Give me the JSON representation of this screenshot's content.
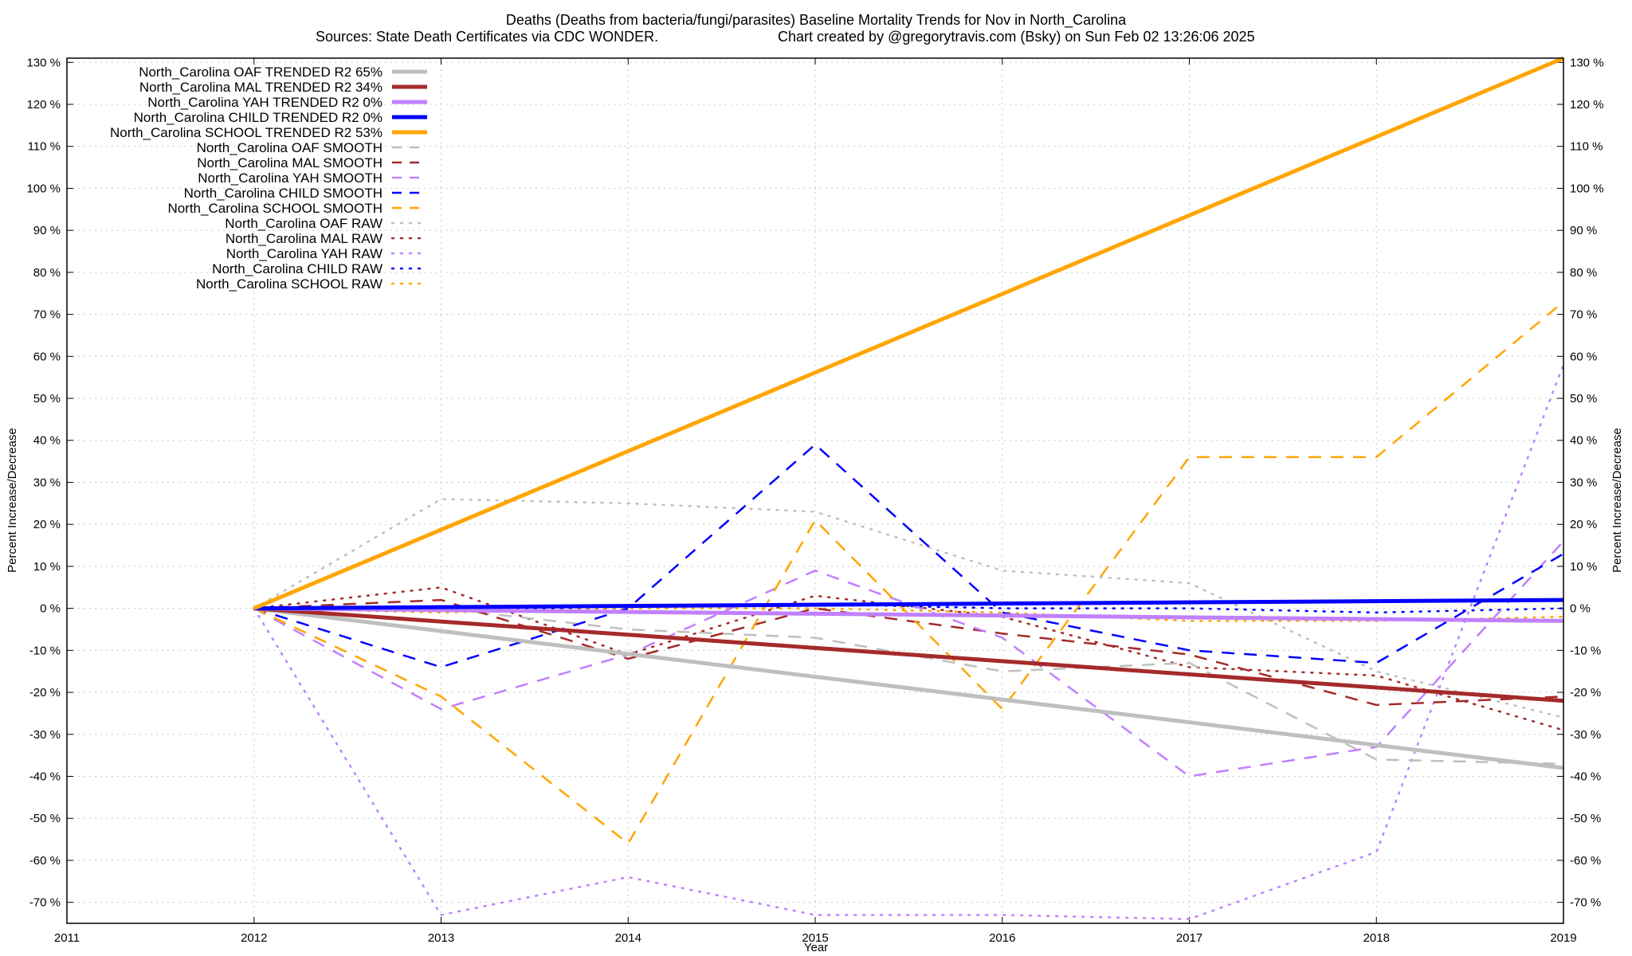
{
  "chart_data": {
    "type": "line",
    "title": "Deaths (Deaths from bacteria/fungi/parasites)  Baseline Mortality Trends for Nov in North_Carolina",
    "subtitle_left": "Sources: State Death Certificates via CDC WONDER.",
    "subtitle_right": "Chart created by @gregorytravis.com (Bsky) on Sun Feb 02 13:26:06 2025",
    "xlabel": "Year",
    "ylabel": "Percent Increase/Decrease",
    "xlim": [
      2011,
      2019
    ],
    "ylim": [
      -75,
      131
    ],
    "x_ticks": [
      "2011",
      "2012",
      "2013",
      "2014",
      "2015",
      "2016",
      "2017",
      "2018",
      "2019"
    ],
    "y_ticks": [
      130,
      120,
      110,
      100,
      90,
      80,
      70,
      60,
      50,
      40,
      30,
      20,
      10,
      0,
      -10,
      -20,
      -30,
      -40,
      -50,
      -60,
      -70
    ],
    "y_tick_suffix": " %",
    "grid": true,
    "legend_position": "top-left",
    "x": [
      2012,
      2013,
      2014,
      2015,
      2016,
      2017,
      2018,
      2019
    ],
    "series": [
      {
        "name": "North_Carolina OAF TRENDED R2  65%",
        "style": "solid",
        "width": 5,
        "color": "#bfbfbf",
        "x": [
          2012,
          2019
        ],
        "values": [
          0,
          -38
        ]
      },
      {
        "name": "North_Carolina MAL TRENDED R2  34%",
        "style": "solid",
        "width": 5,
        "color": "#a52a2a",
        "x": [
          2012,
          2019
        ],
        "values": [
          0,
          -22
        ]
      },
      {
        "name": "North_Carolina YAH TRENDED R2   0%",
        "style": "solid",
        "width": 5,
        "color": "#c080ff",
        "x": [
          2012,
          2019
        ],
        "values": [
          0,
          -3
        ]
      },
      {
        "name": "North_Carolina CHILD TRENDED R2   0%",
        "style": "solid",
        "width": 5,
        "color": "#0000ff",
        "x": [
          2012,
          2019
        ],
        "values": [
          0,
          2
        ]
      },
      {
        "name": "North_Carolina SCHOOL TRENDED R2  53%",
        "style": "solid",
        "width": 5,
        "color": "#ffa500",
        "x": [
          2012,
          2019
        ],
        "values": [
          0,
          131
        ]
      },
      {
        "name": "North_Carolina OAF SMOOTH",
        "style": "dashed",
        "width": 2.5,
        "color": "#bfbfbf",
        "values": [
          0,
          0,
          -5,
          -7,
          -15,
          -13,
          -36,
          -37
        ]
      },
      {
        "name": "North_Carolina MAL SMOOTH",
        "style": "dashed",
        "width": 2.5,
        "color": "#a52a2a",
        "values": [
          0,
          2,
          -12,
          0,
          -6,
          -11,
          -23,
          -21
        ]
      },
      {
        "name": "North_Carolina YAH SMOOTH",
        "style": "dashed",
        "width": 2.5,
        "color": "#c080ff",
        "values": [
          0,
          -24,
          -11,
          9,
          -7,
          -40,
          -33,
          16
        ]
      },
      {
        "name": "North_Carolina CHILD SMOOTH",
        "style": "dashed",
        "width": 2.5,
        "color": "#0000ff",
        "values": [
          0,
          -14,
          0,
          39,
          -1,
          -10,
          -13,
          13
        ]
      },
      {
        "name": "North_Carolina SCHOOL SMOOTH",
        "style": "dashed",
        "width": 2.5,
        "color": "#ffa500",
        "values": [
          0,
          -21,
          -56,
          21,
          -24,
          36,
          36,
          73
        ]
      },
      {
        "name": "North_Carolina OAF RAW",
        "style": "dotted",
        "width": 2.5,
        "color": "#bfbfbf",
        "values": [
          0,
          26,
          25,
          23,
          9,
          6,
          -15,
          -26
        ]
      },
      {
        "name": "North_Carolina MAL RAW",
        "style": "dotted",
        "width": 2.5,
        "color": "#a52a2a",
        "values": [
          0,
          5,
          -11,
          3,
          -2,
          -14,
          -16,
          -29
        ]
      },
      {
        "name": "North_Carolina YAH RAW",
        "style": "dotted",
        "width": 2.5,
        "color": "#c080ff",
        "values": [
          0,
          -73,
          -64,
          -73,
          -73,
          -74,
          -58,
          58
        ]
      },
      {
        "name": "North_Carolina CHILD RAW",
        "style": "dotted",
        "width": 2.5,
        "color": "#0000ff",
        "values": [
          0,
          0,
          0,
          1,
          0,
          0,
          -1,
          0
        ]
      },
      {
        "name": "North_Carolina SCHOOL RAW",
        "style": "dotted",
        "width": 2.5,
        "color": "#ffa500",
        "values": [
          0,
          -1,
          0,
          0,
          -1,
          -3,
          -3,
          -2
        ]
      }
    ]
  }
}
